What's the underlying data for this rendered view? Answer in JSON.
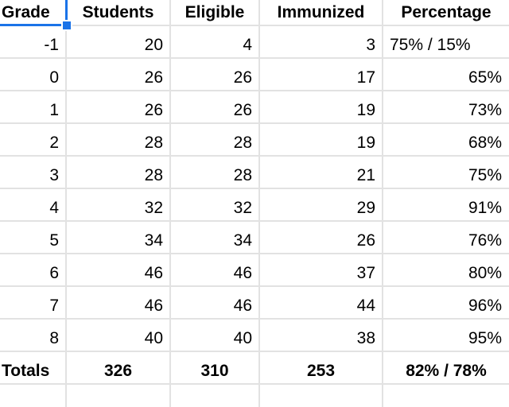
{
  "app": "spreadsheet",
  "colors": {
    "selection_accent": "#1a73e8",
    "gridline": "#e2e2e2",
    "text": "#000000",
    "background": "#ffffff"
  },
  "selection": {
    "selected_header": "Grade",
    "has_fill_handle": true
  },
  "table": {
    "headers": {
      "grade": "Grade",
      "students": "Students",
      "eligible": "Eligible",
      "immunized": "Immunized",
      "percentage": "Percentage"
    },
    "rows": [
      {
        "grade": "-1",
        "students": "20",
        "eligible": "4",
        "immunized": "3",
        "percentage": "75% / 15%"
      },
      {
        "grade": "0",
        "students": "26",
        "eligible": "26",
        "immunized": "17",
        "percentage": "65%"
      },
      {
        "grade": "1",
        "students": "26",
        "eligible": "26",
        "immunized": "19",
        "percentage": "73%"
      },
      {
        "grade": "2",
        "students": "28",
        "eligible": "28",
        "immunized": "19",
        "percentage": "68%"
      },
      {
        "grade": "3",
        "students": "28",
        "eligible": "28",
        "immunized": "21",
        "percentage": "75%"
      },
      {
        "grade": "4",
        "students": "32",
        "eligible": "32",
        "immunized": "29",
        "percentage": "91%"
      },
      {
        "grade": "5",
        "students": "34",
        "eligible": "34",
        "immunized": "26",
        "percentage": "76%"
      },
      {
        "grade": "6",
        "students": "46",
        "eligible": "46",
        "immunized": "37",
        "percentage": "80%"
      },
      {
        "grade": "7",
        "students": "46",
        "eligible": "46",
        "immunized": "44",
        "percentage": "96%"
      },
      {
        "grade": "8",
        "students": "40",
        "eligible": "40",
        "immunized": "38",
        "percentage": "95%"
      }
    ],
    "totals": {
      "label": "Totals",
      "students": "326",
      "eligible": "310",
      "immunized": "253",
      "percentage": "82% / 78%"
    }
  }
}
